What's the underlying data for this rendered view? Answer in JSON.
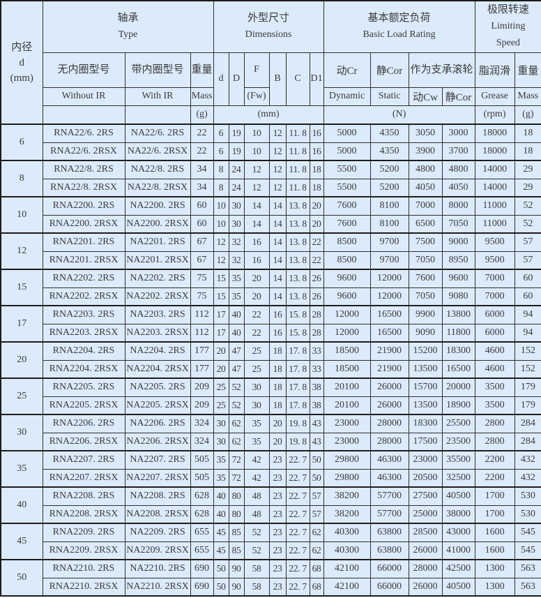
{
  "colors": {
    "cell_background": "#dcebfb",
    "grid_border": "#2e2e2e",
    "text": "#3a3a3a"
  },
  "header": {
    "bore": "内径\nd\n(mm)",
    "type_group": {
      "zh": "轴承",
      "en": "Type"
    },
    "dims_group": {
      "zh": "外型尺寸",
      "en": "Dimensions"
    },
    "load_group": {
      "zh": "基本额定负荷",
      "en": "Basic Load Rating"
    },
    "speed_group": {
      "zh": "极限转速",
      "en": "Limiting\nSpeed"
    },
    "without_ir": {
      "zh": "无内圈型号",
      "en": "Without IR"
    },
    "with_ir": {
      "zh": "带内圈型号",
      "en": "With IR"
    },
    "mass": {
      "zh": "重量",
      "en": "Mass",
      "unit": "(g)"
    },
    "dims": {
      "d": "d",
      "D": "D",
      "F": "F",
      "Fw": "(Fw)",
      "B": "B",
      "C": "C",
      "D1": "D1",
      "unit": "(mm)"
    },
    "load": {
      "dyn_zh": "动Cr",
      "dyn_en": "Dynamic",
      "stat_zh": "静Cor",
      "stat_en": "Static",
      "roller_zh": "作为支承滚轮",
      "cw_zh": "动Cw",
      "cor2_zh": "静Cor",
      "unit": "(N)"
    },
    "speed": {
      "grease_zh": "脂润滑",
      "grease_en": "Grease",
      "grease_unit": "(rpm)",
      "mass_zh": "重量",
      "mass_en": "Mass",
      "mass_unit": "(g)"
    }
  },
  "column_names": [
    "model-without-ir",
    "model-with-ir",
    "mass-g",
    "dim-d",
    "dim-D",
    "dim-F",
    "dim-B",
    "dim-C",
    "dim-D1",
    "load-dynamic-cr",
    "load-static-cor",
    "load-dynamic-cw",
    "load-static-cor-roller",
    "speed-grease-rpm",
    "mass-g-2"
  ],
  "groups": [
    {
      "bore": "6",
      "rows": [
        [
          "RNA22/6. 2RS",
          "NA22/6. 2RS",
          "22",
          "6",
          "19",
          "10",
          "12",
          "11. 8",
          "16",
          "5000",
          "4350",
          "3050",
          "3000",
          "18000",
          "18"
        ],
        [
          "RNA22/6. 2RSX",
          "NA22/6. 2RSX",
          "22",
          "6",
          "19",
          "10",
          "12",
          "11. 8",
          "16",
          "5000",
          "4350",
          "3900",
          "3700",
          "18000",
          "18"
        ]
      ]
    },
    {
      "bore": "8",
      "rows": [
        [
          "RNA22/8. 2RS",
          "NA22/8. 2RS",
          "34",
          "8",
          "24",
          "12",
          "12",
          "11. 8",
          "18",
          "5500",
          "5200",
          "4800",
          "4800",
          "14000",
          "29"
        ],
        [
          "RNA22/8. 2RSX",
          "NA22/8. 2RSX",
          "34",
          "8",
          "24",
          "12",
          "12",
          "11. 8",
          "18",
          "5500",
          "5200",
          "4050",
          "4050",
          "14000",
          "29"
        ]
      ]
    },
    {
      "bore": "10",
      "rows": [
        [
          "RNA2200. 2RS",
          "NA2200. 2RS",
          "60",
          "10",
          "30",
          "14",
          "14",
          "13. 8",
          "20",
          "7600",
          "8100",
          "7000",
          "8000",
          "11000",
          "52"
        ],
        [
          "RNA2200. 2RSX",
          "NA2200. 2RSX",
          "60",
          "10",
          "30",
          "14",
          "14",
          "13. 8",
          "20",
          "7600",
          "8100",
          "6500",
          "7050",
          "11000",
          "52"
        ]
      ]
    },
    {
      "bore": "12",
      "rows": [
        [
          "RNA2201. 2RS",
          "NA2201. 2RS",
          "67",
          "12",
          "32",
          "16",
          "14",
          "13. 8",
          "22",
          "8500",
          "9700",
          "7500",
          "9000",
          "9500",
          "57"
        ],
        [
          "RNA2201. 2RSX",
          "NA2201. 2RSX",
          "67",
          "12",
          "32",
          "16",
          "14",
          "13. 8",
          "22",
          "8500",
          "9700",
          "7050",
          "8950",
          "9500",
          "57"
        ]
      ]
    },
    {
      "bore": "15",
      "rows": [
        [
          "RNA2202. 2RS",
          "NA2202. 2RS",
          "75",
          "15",
          "35",
          "20",
          "14",
          "13. 8",
          "26",
          "9600",
          "12000",
          "7600",
          "9600",
          "7000",
          "60"
        ],
        [
          "RNA2202. 2RSX",
          "NA2202. 2RSX",
          "75",
          "15",
          "35",
          "20",
          "14",
          "13. 8",
          "26",
          "9600",
          "12000",
          "7050",
          "9080",
          "7000",
          "60"
        ]
      ]
    },
    {
      "bore": "17",
      "rows": [
        [
          "RNA2203. 2RS",
          "NA2203. 2RS",
          "112",
          "17",
          "40",
          "22",
          "16",
          "15. 8",
          "28",
          "12000",
          "16500",
          "9900",
          "13800",
          "6000",
          "94"
        ],
        [
          "RNA2203. 2RSX",
          "NA2203. 2RSX",
          "112",
          "17",
          "40",
          "22",
          "16",
          "15. 8",
          "28",
          "12000",
          "16500",
          "9090",
          "11800",
          "6000",
          "94"
        ]
      ]
    },
    {
      "bore": "20",
      "rows": [
        [
          "RNA2204. 2RS",
          "NA2204. 2RS",
          "177",
          "20",
          "47",
          "25",
          "18",
          "17. 8",
          "33",
          "18500",
          "21900",
          "15200",
          "18300",
          "4600",
          "152"
        ],
        [
          "RNA2204. 2RSX",
          "NA2204. 2RSX",
          "177",
          "20",
          "47",
          "25",
          "18",
          "17. 8",
          "33",
          "18500",
          "21900",
          "13500",
          "16500",
          "4600",
          "152"
        ]
      ]
    },
    {
      "bore": "25",
      "rows": [
        [
          "RNA2205. 2RS",
          "NA2205. 2RS",
          "209",
          "25",
          "52",
          "30",
          "18",
          "17. 8",
          "38",
          "20100",
          "26000",
          "15700",
          "20000",
          "3500",
          "179"
        ],
        [
          "RNA2205. 2RSX",
          "NA2205. 2RSX",
          "209",
          "25",
          "52",
          "30",
          "18",
          "17. 8",
          "38",
          "20100",
          "26000",
          "13500",
          "18900",
          "3500",
          "179"
        ]
      ]
    },
    {
      "bore": "30",
      "rows": [
        [
          "RNA2206. 2RS",
          "NA2206. 2RS",
          "324",
          "30",
          "62",
          "35",
          "20",
          "19. 8",
          "43",
          "23000",
          "28000",
          "18300",
          "25500",
          "2800",
          "284"
        ],
        [
          "RNA2206. 2RSX",
          "NA2206. 2RSX",
          "324",
          "30",
          "62",
          "35",
          "20",
          "19. 8",
          "43",
          "23000",
          "28000",
          "17500",
          "23500",
          "2800",
          "284"
        ]
      ]
    },
    {
      "bore": "35",
      "rows": [
        [
          "RNA2207. 2RS",
          "NA2207. 2RS",
          "505",
          "35",
          "72",
          "42",
          "23",
          "22. 7",
          "50",
          "29800",
          "46300",
          "23000",
          "35500",
          "2200",
          "432"
        ],
        [
          "RNA2207. 2RSX",
          "NA2207. 2RSX",
          "505",
          "35",
          "72",
          "42",
          "23",
          "22. 7",
          "50",
          "29800",
          "46300",
          "20500",
          "32500",
          "2200",
          "432"
        ]
      ]
    },
    {
      "bore": "40",
      "rows": [
        [
          "RNA2208. 2RS",
          "NA2208. 2RS",
          "628",
          "40",
          "80",
          "48",
          "23",
          "22. 7",
          "57",
          "38200",
          "57700",
          "27500",
          "40500",
          "1700",
          "530"
        ],
        [
          "RNA2208. 2RSX",
          "NA2208. 2RSX",
          "628",
          "40",
          "80",
          "48",
          "23",
          "22. 7",
          "57",
          "38200",
          "57700",
          "25000",
          "38000",
          "1700",
          "530"
        ]
      ]
    },
    {
      "bore": "45",
      "rows": [
        [
          "RNA2209. 2RS",
          "NA2209. 2RS",
          "655",
          "45",
          "85",
          "52",
          "23",
          "22. 7",
          "62",
          "40300",
          "63800",
          "28500",
          "43000",
          "1600",
          "545"
        ],
        [
          "RNA2209. 2RSX",
          "NA2209. 2RSX",
          "655",
          "45",
          "85",
          "52",
          "23",
          "22. 7",
          "62",
          "40300",
          "63800",
          "26000",
          "41000",
          "1600",
          "545"
        ]
      ]
    },
    {
      "bore": "50",
      "rows": [
        [
          "RNA2210. 2RS",
          "NA2210. 2RS",
          "690",
          "50",
          "90",
          "58",
          "23",
          "22. 7",
          "68",
          "42100",
          "66000",
          "28000",
          "42500",
          "1300",
          "563"
        ],
        [
          "RNA2210. 2RSX",
          "NA2210. 2RSX",
          "690",
          "50",
          "90",
          "58",
          "23",
          "22. 7",
          "68",
          "42100",
          "66000",
          "26000",
          "40500",
          "1300",
          "563"
        ]
      ]
    }
  ]
}
